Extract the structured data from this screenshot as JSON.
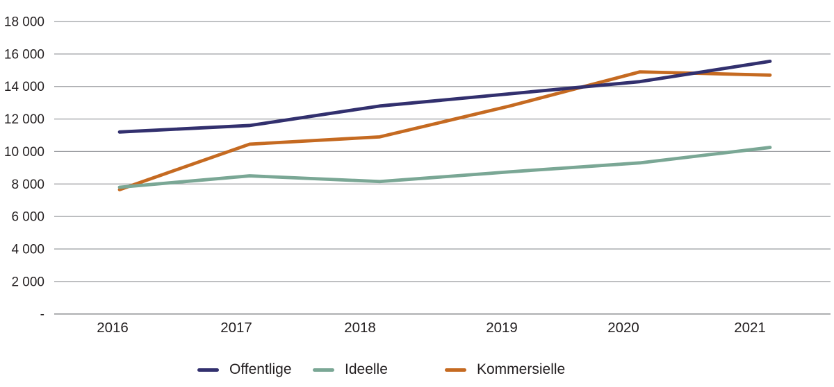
{
  "chart_data": {
    "type": "line",
    "title": "",
    "xlabel": "",
    "ylabel": "",
    "categories": [
      "2016",
      "2017",
      "2018",
      "2019",
      "2020",
      "2021"
    ],
    "series": [
      {
        "name": "Offentlige",
        "color": "#32306e",
        "values": [
          11200,
          11600,
          12800,
          13550,
          14300,
          15550
        ]
      },
      {
        "name": "Ideelle",
        "color": "#7aa795",
        "values": [
          7800,
          8500,
          8150,
          8750,
          9300,
          10250
        ]
      },
      {
        "name": "Kommersielle",
        "color": "#c56a21",
        "values": [
          7650,
          10450,
          10900,
          12800,
          14900,
          14700
        ]
      }
    ],
    "ylim": [
      0,
      18000
    ],
    "ytick_interval": 2000,
    "ytick_values": [
      0,
      2000,
      4000,
      6000,
      8000,
      10000,
      12000,
      14000,
      16000,
      18000
    ],
    "ytick_labels": [
      "-",
      "2 000",
      "4 000",
      "6 000",
      "8 000",
      "10 000",
      "12 000",
      "14 000",
      "16 000",
      "18 000"
    ],
    "grid": true,
    "legend_position": "bottom"
  },
  "colors": {
    "gridline": "#9b9da1",
    "axis_line": "#85878a",
    "text": "#231f20",
    "background": "#ffffff"
  }
}
